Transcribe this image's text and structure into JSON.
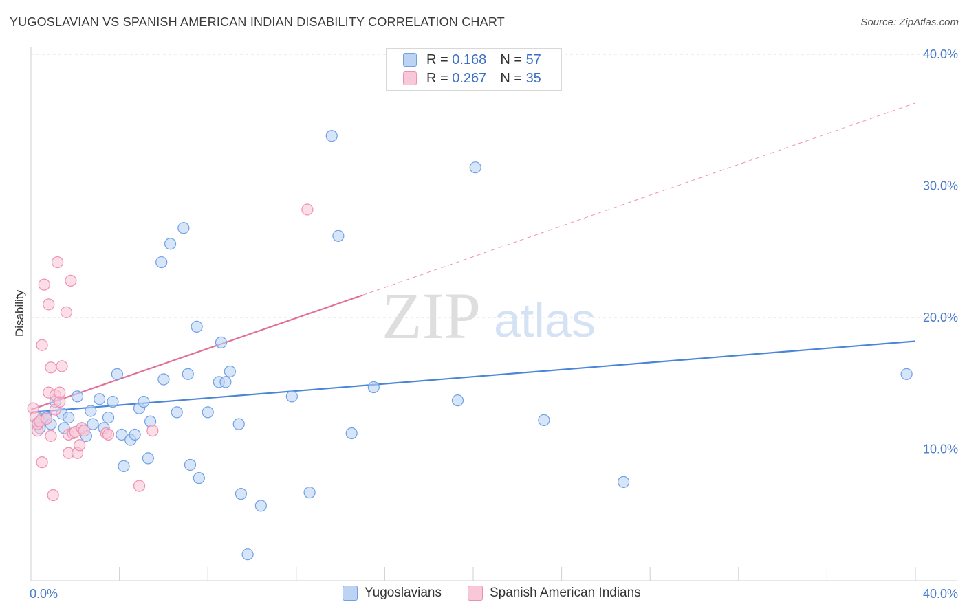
{
  "title": "YUGOSLAVIAN VS SPANISH AMERICAN INDIAN DISABILITY CORRELATION CHART",
  "source": "Source: ZipAtlas.com",
  "watermark": {
    "zip": "ZIP",
    "atlas": "atlas"
  },
  "legend": {
    "r_label": "R =",
    "n_label": "N =",
    "rows": [
      {
        "r": "0.168",
        "n": "57",
        "color": "#6fa0e8",
        "fill": "#bcd3f4"
      },
      {
        "r": "0.267",
        "n": "35",
        "color": "#f090b0",
        "fill": "#f9c8d8"
      }
    ]
  },
  "bottom_legend": [
    {
      "label": "Yugoslavians",
      "color": "#6fa0e8",
      "fill": "#bcd3f4"
    },
    {
      "label": "Spanish American Indians",
      "color": "#f090b0",
      "fill": "#f9c8d8"
    }
  ],
  "chart_data": {
    "type": "scatter",
    "title": "YUGOSLAVIAN VS SPANISH AMERICAN INDIAN DISABILITY CORRELATION CHART",
    "xlabel": "",
    "ylabel": "Disability",
    "xlim": [
      0,
      40
    ],
    "ylim": [
      0,
      40
    ],
    "x_tick_labels": [
      "0.0%",
      "40.0%"
    ],
    "y_ticks": [
      10,
      20,
      30,
      40
    ],
    "y_tick_labels": [
      "10.0%",
      "20.0%",
      "30.0%",
      "40.0%"
    ],
    "grid": true,
    "legend_position": "top-center",
    "series": [
      {
        "name": "Yugoslavians",
        "color": "#4a86d8",
        "fill": "#bcd3f4",
        "stroke": "#6fa0e8",
        "points": [
          [
            0.3,
            12.0
          ],
          [
            0.5,
            12.3
          ],
          [
            0.6,
            12.5
          ],
          [
            0.7,
            12.4
          ],
          [
            0.9,
            11.9
          ],
          [
            1.1,
            13.6
          ],
          [
            1.4,
            12.7
          ],
          [
            1.5,
            11.6
          ],
          [
            1.7,
            12.4
          ],
          [
            2.1,
            14.0
          ],
          [
            2.3,
            11.6
          ],
          [
            2.5,
            11.0
          ],
          [
            2.7,
            12.9
          ],
          [
            2.8,
            11.9
          ],
          [
            3.1,
            13.8
          ],
          [
            3.3,
            11.6
          ],
          [
            3.5,
            12.4
          ],
          [
            3.7,
            13.6
          ],
          [
            3.9,
            15.7
          ],
          [
            4.1,
            11.1
          ],
          [
            4.2,
            8.7
          ],
          [
            4.5,
            10.7
          ],
          [
            4.7,
            11.1
          ],
          [
            4.9,
            13.1
          ],
          [
            5.1,
            13.6
          ],
          [
            5.3,
            9.3
          ],
          [
            5.4,
            12.1
          ],
          [
            5.9,
            24.2
          ],
          [
            6.0,
            15.3
          ],
          [
            6.3,
            25.6
          ],
          [
            6.6,
            12.8
          ],
          [
            6.9,
            26.8
          ],
          [
            7.1,
            15.7
          ],
          [
            7.2,
            8.8
          ],
          [
            7.5,
            19.3
          ],
          [
            7.6,
            7.8
          ],
          [
            8.0,
            12.8
          ],
          [
            8.5,
            15.1
          ],
          [
            8.6,
            18.1
          ],
          [
            8.8,
            15.1
          ],
          [
            9.0,
            15.9
          ],
          [
            9.4,
            11.9
          ],
          [
            9.5,
            6.6
          ],
          [
            9.8,
            2.0
          ],
          [
            10.4,
            5.7
          ],
          [
            11.8,
            14.0
          ],
          [
            12.6,
            6.7
          ],
          [
            13.6,
            33.8
          ],
          [
            13.9,
            26.2
          ],
          [
            14.5,
            11.2
          ],
          [
            15.5,
            14.7
          ],
          [
            19.3,
            13.7
          ],
          [
            20.1,
            31.4
          ],
          [
            23.2,
            12.2
          ],
          [
            26.8,
            7.5
          ],
          [
            39.6,
            15.7
          ],
          [
            0.4,
            11.6
          ]
        ],
        "trend": {
          "x": [
            0,
            40
          ],
          "y": [
            12.8,
            18.2
          ],
          "style": "solid"
        }
      },
      {
        "name": "Spanish American Indians",
        "color": "#e07098",
        "fill": "#f9c8d8",
        "stroke": "#f090b0",
        "points": [
          [
            0.1,
            13.1
          ],
          [
            0.2,
            12.4
          ],
          [
            0.3,
            11.4
          ],
          [
            0.3,
            11.9
          ],
          [
            0.4,
            12.1
          ],
          [
            0.5,
            9.0
          ],
          [
            0.5,
            17.9
          ],
          [
            0.6,
            22.5
          ],
          [
            0.7,
            12.3
          ],
          [
            0.8,
            21.0
          ],
          [
            0.8,
            14.3
          ],
          [
            0.9,
            11.0
          ],
          [
            0.9,
            16.2
          ],
          [
            1.0,
            6.5
          ],
          [
            1.1,
            13.0
          ],
          [
            1.1,
            14.1
          ],
          [
            1.2,
            24.2
          ],
          [
            1.3,
            13.6
          ],
          [
            1.3,
            14.3
          ],
          [
            1.4,
            16.3
          ],
          [
            1.6,
            20.4
          ],
          [
            1.7,
            11.1
          ],
          [
            1.7,
            9.7
          ],
          [
            1.8,
            22.8
          ],
          [
            1.9,
            11.2
          ],
          [
            2.0,
            11.3
          ],
          [
            2.1,
            9.7
          ],
          [
            2.2,
            10.3
          ],
          [
            2.3,
            11.6
          ],
          [
            2.4,
            11.4
          ],
          [
            3.4,
            11.2
          ],
          [
            3.5,
            11.1
          ],
          [
            4.9,
            7.2
          ],
          [
            5.5,
            11.4
          ],
          [
            12.5,
            28.2
          ]
        ],
        "trend": {
          "x": [
            0,
            15
          ],
          "y": [
            13.0,
            21.7
          ],
          "style": "solid",
          "extended": {
            "x": [
              15,
              40
            ],
            "y": [
              21.7,
              36.3
            ],
            "style": "dashed"
          }
        }
      }
    ]
  }
}
